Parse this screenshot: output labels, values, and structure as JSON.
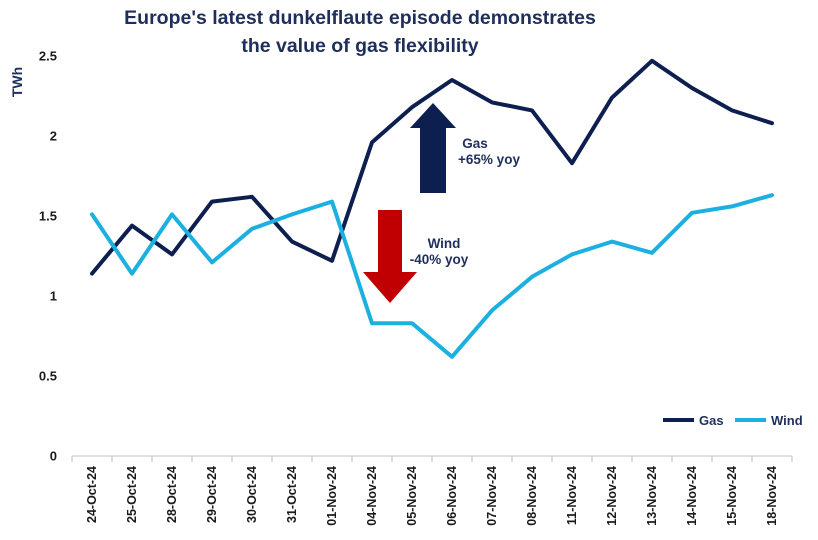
{
  "chart_data": {
    "type": "line",
    "title_lines": [
      "Europe's latest dunkelflaute episode demonstrates",
      "the value of gas flexibility"
    ],
    "ylabel": "TWh",
    "xlabel": "",
    "ylim": [
      0,
      2.5
    ],
    "yticks": [
      "0",
      "0.5",
      "1",
      "1.5",
      "2",
      "2.5"
    ],
    "grid": false,
    "legend_position": "bottom-right",
    "categories": [
      "24-Oct-24",
      "25-Oct-24",
      "28-Oct-24",
      "29-Oct-24",
      "30-Oct-24",
      "31-Oct-24",
      "01-Nov-24",
      "04-Nov-24",
      "05-Nov-24",
      "06-Nov-24",
      "07-Nov-24",
      "08-Nov-24",
      "11-Nov-24",
      "12-Nov-24",
      "13-Nov-24",
      "14-Nov-24",
      "15-Nov-24",
      "18-Nov-24"
    ],
    "series": [
      {
        "name": "Gas",
        "color": "#0d1f4f",
        "values": [
          1.14,
          1.44,
          1.26,
          1.59,
          1.62,
          1.34,
          1.22,
          1.96,
          2.18,
          2.35,
          2.21,
          2.16,
          1.83,
          2.24,
          2.47,
          2.3,
          2.16,
          2.08
        ]
      },
      {
        "name": "Wind",
        "color": "#1cb0e0",
        "values": [
          1.51,
          1.14,
          1.51,
          1.21,
          1.42,
          1.51,
          1.59,
          0.83,
          0.83,
          0.62,
          0.91,
          1.12,
          1.26,
          1.34,
          1.27,
          1.52,
          1.56,
          1.63
        ]
      }
    ],
    "annotations": [
      {
        "lines": [
          "Gas",
          "+65% yoy"
        ],
        "arrow": "up",
        "color": "#0d1f4f"
      },
      {
        "lines": [
          "Wind",
          "-40% yoy"
        ],
        "arrow": "down",
        "color": "#c00000"
      }
    ]
  }
}
